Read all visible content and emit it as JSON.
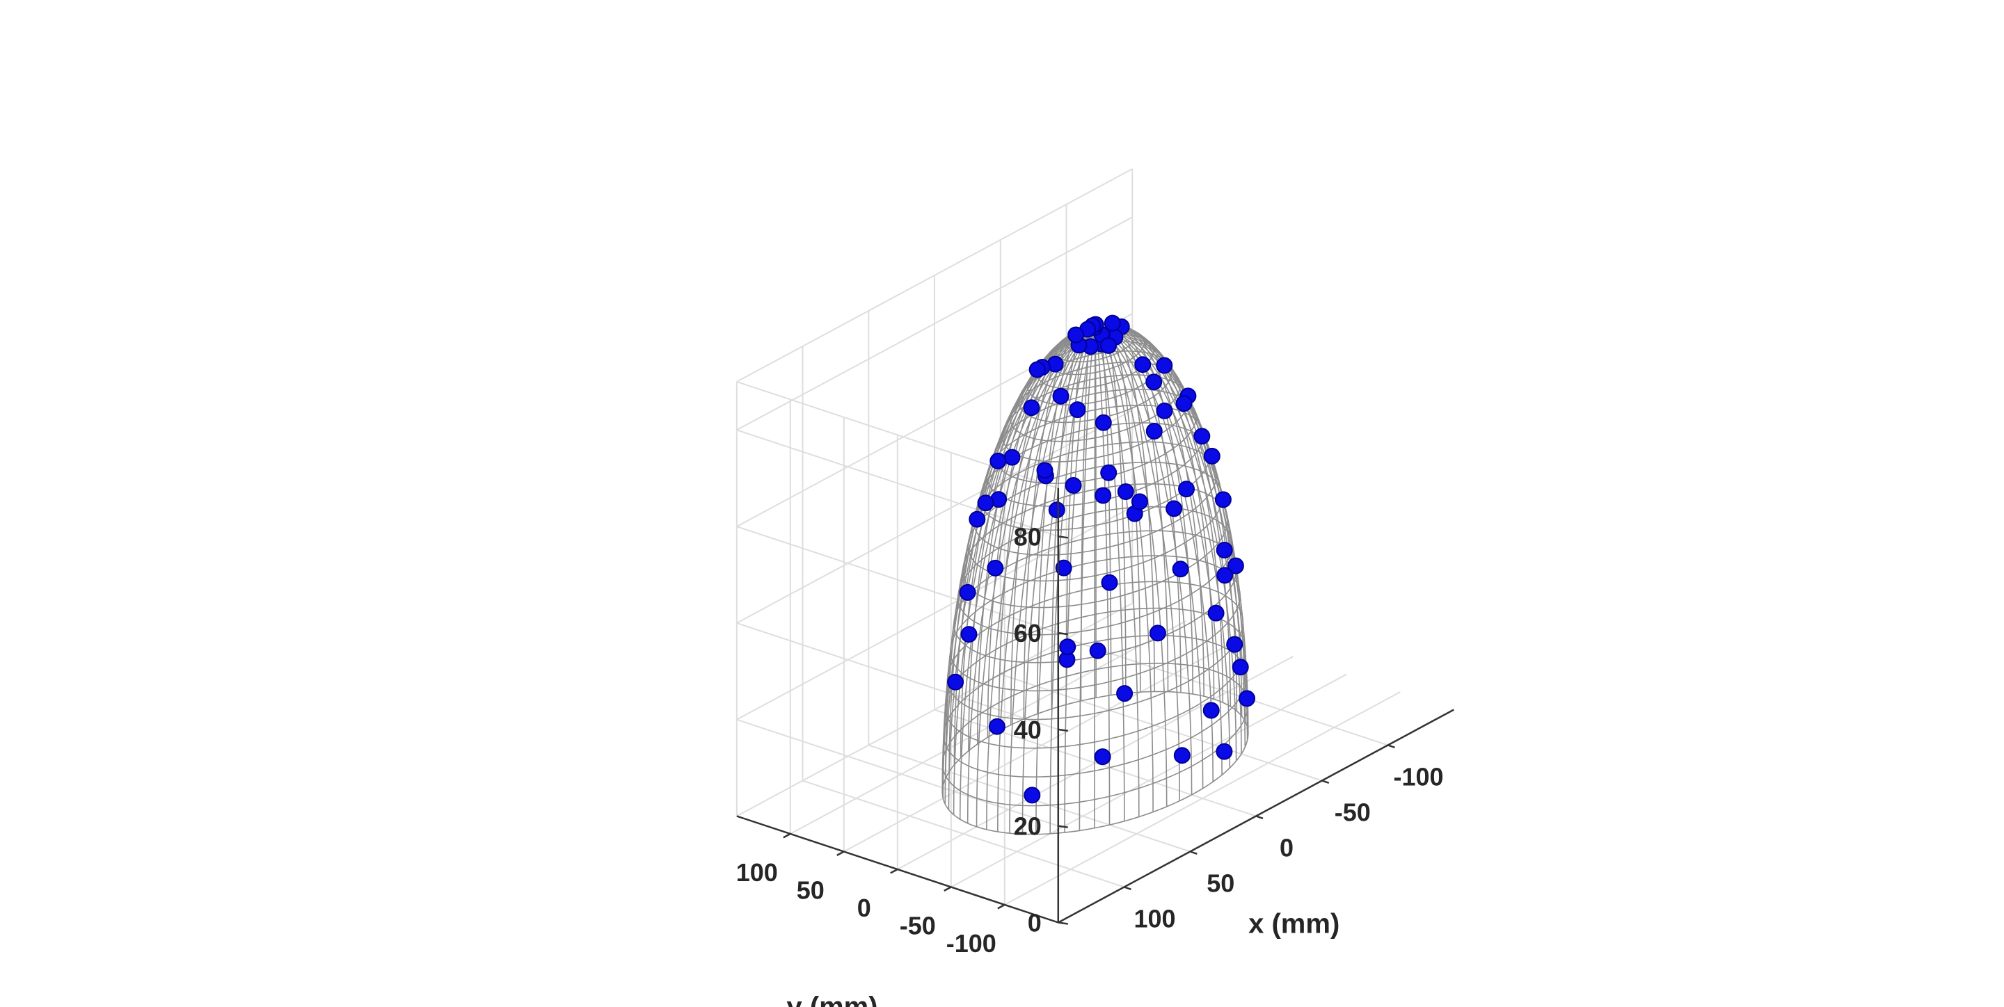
{
  "chart_data": {
    "type": "scatter",
    "title": "",
    "xlabel": "x (mm)",
    "ylabel": "y (mm)",
    "zlabel": "",
    "xlim": [
      -150,
      150
    ],
    "ylim": [
      -150,
      150
    ],
    "zlim": [
      0,
      90
    ],
    "x_ticks": [
      -100,
      -50,
      0,
      50,
      100
    ],
    "y_ticks": [
      -100,
      -50,
      0,
      50,
      100
    ],
    "z_ticks": [
      0,
      20,
      40,
      60,
      80
    ],
    "x_tick_labels": [
      "-100",
      "-50",
      "0",
      "50",
      "100"
    ],
    "y_tick_labels": [
      "-100",
      "-50",
      "0",
      "50",
      "100"
    ],
    "z_tick_labels": [
      "0",
      "20",
      "40",
      "60",
      "80"
    ],
    "grid": true,
    "surface": {
      "type": "hemisphere-wireframe",
      "center": [
        0,
        0,
        0
      ],
      "radius": 90
    },
    "marker_color": "#0a0ae6",
    "series": [
      {
        "points": [
          [
            -15.6,
            3.1,
            88.6
          ],
          [
            -3.1,
            -14.6,
            88.8
          ],
          [
            -3.0,
            6.2,
            89.7
          ],
          [
            6.1,
            10.6,
            88.8
          ],
          [
            6.3,
            -13.8,
            88.7
          ],
          [
            -13.9,
            -6.0,
            88.7
          ],
          [
            14.2,
            -2.2,
            88.8
          ],
          [
            1.8,
            -8.4,
            89.6
          ],
          [
            -8.7,
            10.4,
            88.8
          ],
          [
            11.1,
            -9.3,
            88.6
          ],
          [
            -0.7,
            1.3,
            90.0
          ],
          [
            2.4,
            4.1,
            89.9
          ],
          [
            -31.9,
            26.9,
            79.8
          ],
          [
            42.0,
            7.8,
            79.2
          ],
          [
            26.3,
            -40.0,
            77.3
          ],
          [
            -24.7,
            5.9,
            86.3
          ],
          [
            -48.8,
            -4.4,
            75.5
          ],
          [
            16.4,
            33.9,
            81.4
          ],
          [
            35.3,
            -11.3,
            82.0
          ],
          [
            -12.4,
            -39.4,
            80.0
          ],
          [
            20.8,
            23.8,
            83.3
          ],
          [
            -36.0,
            -38.5,
            72.0
          ],
          [
            -50.9,
            -24.0,
            70.3
          ],
          [
            47.6,
            -38.2,
            67.3
          ],
          [
            -12.6,
            -49.1,
            74.7
          ],
          [
            -28.9,
            52.2,
            65.1
          ],
          [
            34.2,
            48.6,
            64.0
          ],
          [
            -5.0,
            43.4,
            78.7
          ],
          [
            -64.8,
            24.7,
            57.4
          ],
          [
            47.7,
            51.5,
            53.7
          ],
          [
            -52.0,
            56.7,
            43.6
          ],
          [
            59.2,
            -43.4,
            52.3
          ],
          [
            22.1,
            -64.0,
            59.6
          ],
          [
            -63.6,
            -21.3,
            59.9
          ],
          [
            8.8,
            66.8,
            59.7
          ],
          [
            62.9,
            12.8,
            62.9
          ],
          [
            -67.3,
            41.3,
            41.2
          ],
          [
            40.7,
            -63.4,
            48.0
          ],
          [
            60.5,
            27.8,
            60.7
          ],
          [
            -30.3,
            73.1,
            42.6
          ],
          [
            -77.5,
            10.3,
            44.6
          ],
          [
            65.0,
            -53.6,
            34.9
          ],
          [
            39.3,
            70.7,
            35.9
          ],
          [
            -20.4,
            72.2,
            52.3
          ],
          [
            -73.4,
            -29.1,
            45.9
          ],
          [
            -26.6,
            -80.0,
            33.0
          ],
          [
            79.7,
            19.8,
            36.9
          ],
          [
            -41.5,
            -69.5,
            43.1
          ],
          [
            -55.5,
            -62.8,
            37.3
          ],
          [
            -83.6,
            -18.0,
            27.9
          ],
          [
            -45.5,
            -74.0,
            23.3
          ],
          [
            -17.0,
            -87.3,
            14.8
          ],
          [
            -83.0,
            22.5,
            26.3
          ],
          [
            44.8,
            75.3,
            17.8
          ],
          [
            -57.4,
            68.2,
            9.8
          ],
          [
            -83.0,
            -33.4,
            10.1
          ],
          [
            -29.1,
            -84.6,
            4.3
          ],
          [
            -67.6,
            -58.4,
            7.7
          ],
          [
            86.3,
            -14.6,
            21.3
          ],
          [
            6.7,
            -89.3,
            9.1
          ],
          [
            52.7,
            -71.7,
            14.3
          ],
          [
            -62.3,
            48.2,
            43.5
          ],
          [
            18.2,
            -80.8,
            35.5
          ],
          [
            74.1,
            2.1,
            51.1
          ],
          [
            80.1,
            -39.7,
            8.0
          ],
          [
            -41.9,
            77.4,
            12.2
          ],
          [
            54.0,
            -20.3,
            68.9
          ],
          [
            30.6,
            -50.1,
            68.3
          ],
          [
            -47.1,
            13.7,
            74.6
          ],
          [
            -69.1,
            57.7,
            0.0
          ],
          [
            -3.3,
            -69.4,
            57.3
          ],
          [
            -60.5,
            -34.5,
            57.2
          ]
        ]
      }
    ]
  }
}
